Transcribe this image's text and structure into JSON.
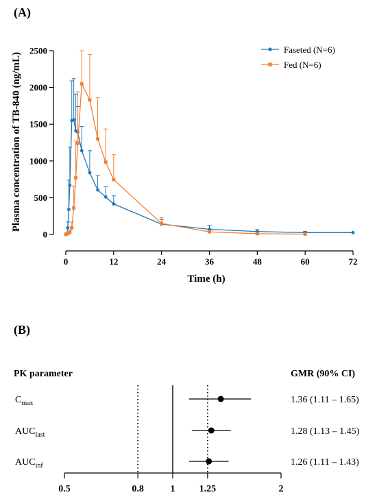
{
  "panel_a": {
    "label": "(A)",
    "chart_data": {
      "type": "line",
      "xlabel": "Time (h)",
      "ylabel": "Plasma concentration of TB-840 (ng/mL)",
      "xlim": [
        0,
        72
      ],
      "ylim": [
        0,
        2500
      ],
      "x_ticks": [
        0,
        12,
        24,
        36,
        48,
        60,
        72
      ],
      "y_ticks": [
        0,
        500,
        1000,
        1500,
        2000,
        2500
      ],
      "legend_position": "top-right",
      "grid": false,
      "series": [
        {
          "name": "Faseted (N=6)",
          "color": "#1f77b4",
          "marker": "circle",
          "points": [
            {
              "x": 0,
              "y": 0,
              "err": 0
            },
            {
              "x": 0.25,
              "y": 10,
              "err": 10
            },
            {
              "x": 0.5,
              "y": 90,
              "err": 80
            },
            {
              "x": 0.75,
              "y": 340,
              "err": 400
            },
            {
              "x": 1,
              "y": 670,
              "err": 520
            },
            {
              "x": 1.5,
              "y": 1550,
              "err": 540
            },
            {
              "x": 2,
              "y": 1560,
              "err": 560
            },
            {
              "x": 2.5,
              "y": 1410,
              "err": 500
            },
            {
              "x": 3,
              "y": 1390,
              "err": 350
            },
            {
              "x": 4,
              "y": 1140,
              "err": 330
            },
            {
              "x": 6,
              "y": 840,
              "err": 300
            },
            {
              "x": 8,
              "y": 605,
              "err": 195
            },
            {
              "x": 10,
              "y": 510,
              "err": 140
            },
            {
              "x": 12,
              "y": 415,
              "err": 110
            },
            {
              "x": 24,
              "y": 140,
              "err": 60
            },
            {
              "x": 36,
              "y": 70,
              "err": 55
            },
            {
              "x": 48,
              "y": 40,
              "err": 25
            },
            {
              "x": 60,
              "y": 25,
              "err": 15
            },
            {
              "x": 72,
              "y": 25,
              "err": 0
            }
          ]
        },
        {
          "name": "Fed (N=6)",
          "color": "#f07f31",
          "marker": "square",
          "points": [
            {
              "x": 0,
              "y": 0,
              "err": 0
            },
            {
              "x": 0.5,
              "y": 10,
              "err": 10
            },
            {
              "x": 1,
              "y": 30,
              "err": 30
            },
            {
              "x": 1.5,
              "y": 90,
              "err": 80
            },
            {
              "x": 2,
              "y": 360,
              "err": 300
            },
            {
              "x": 2.5,
              "y": 770,
              "err": 500
            },
            {
              "x": 3,
              "y": 1240,
              "err": 700
            },
            {
              "x": 4,
              "y": 2050,
              "err": 450
            },
            {
              "x": 6,
              "y": 1830,
              "err": 620
            },
            {
              "x": 8,
              "y": 1300,
              "err": 560
            },
            {
              "x": 10,
              "y": 985,
              "err": 450
            },
            {
              "x": 12,
              "y": 745,
              "err": 340
            },
            {
              "x": 24,
              "y": 150,
              "err": 80
            },
            {
              "x": 36,
              "y": 35,
              "err": 20
            },
            {
              "x": 48,
              "y": 10,
              "err": 10
            },
            {
              "x": 60,
              "y": 5,
              "err": 5
            }
          ]
        }
      ]
    }
  },
  "panel_b": {
    "label": "(B)",
    "header_left": "PK parameter",
    "header_right": "GMR (90% CI)",
    "chart_data": {
      "type": "forest",
      "x_ticks": [
        {
          "value": 0.5,
          "label": "0.5"
        },
        {
          "value": 0.8,
          "label": "0.8"
        },
        {
          "value": 1,
          "label": "1"
        },
        {
          "value": 1.25,
          "label": "1.25"
        },
        {
          "value": 2,
          "label": "2"
        }
      ],
      "xlim": [
        0.5,
        2
      ],
      "reference_line": 1,
      "bounds": [
        0.8,
        1.25
      ],
      "rows": [
        {
          "param": "C",
          "sub": "max",
          "gmr": 1.36,
          "lower": 1.11,
          "upper": 1.65,
          "ci_text": "1.36 (1.11 – 1.65)"
        },
        {
          "param": "AUC",
          "sub": "last",
          "gmr": 1.28,
          "lower": 1.13,
          "upper": 1.45,
          "ci_text": "1.28 (1.13 – 1.45)"
        },
        {
          "param": "AUC",
          "sub": "inf",
          "gmr": 1.26,
          "lower": 1.11,
          "upper": 1.43,
          "ci_text": "1.26 (1.11 – 1.43)"
        }
      ]
    }
  }
}
